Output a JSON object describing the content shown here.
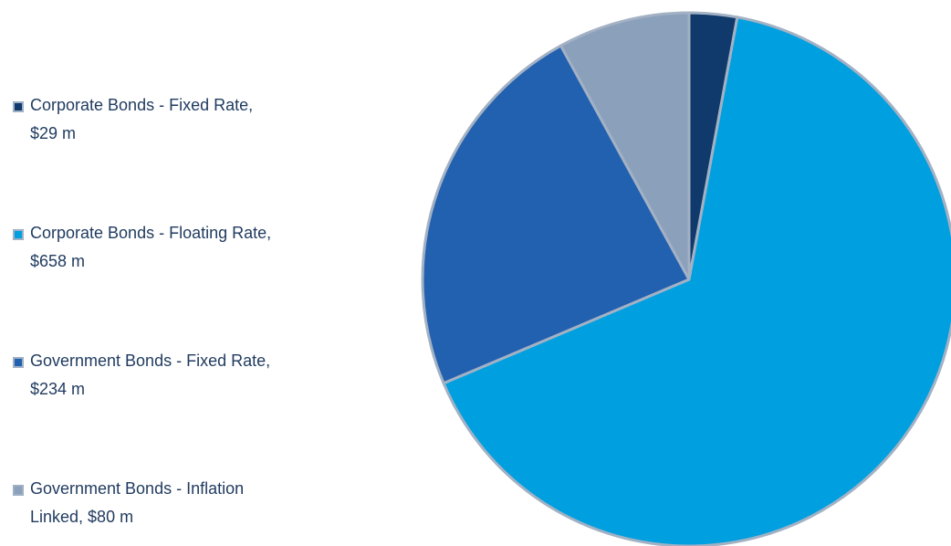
{
  "chart_data": {
    "type": "pie",
    "categories": [
      "Corporate Bonds - Fixed Rate, $29 m",
      "Corporate Bonds - Floating Rate, $658 m",
      "Government Bonds - Fixed Rate, $234 m",
      "Government Bonds - Inflation Linked, $80 m"
    ],
    "values": [
      29,
      658,
      234,
      80
    ],
    "colors": [
      "#0f3a6b",
      "#00a0e0",
      "#2260b0",
      "#8aa0bb"
    ],
    "legend": "left"
  }
}
